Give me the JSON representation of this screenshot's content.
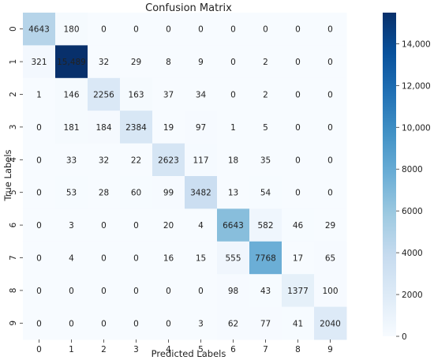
{
  "chart_data": {
    "type": "heatmap",
    "title": "Confusion Matrix",
    "xlabel": "Predicted Labels",
    "ylabel": "True Labels",
    "x_categories": [
      "0",
      "1",
      "2",
      "3",
      "4",
      "5",
      "6",
      "7",
      "8",
      "9"
    ],
    "y_categories": [
      "0",
      "1",
      "2",
      "3",
      "4",
      "5",
      "6",
      "7",
      "8",
      "9"
    ],
    "matrix": [
      [
        4643,
        180,
        0,
        0,
        0,
        0,
        0,
        0,
        0,
        0
      ],
      [
        321,
        15489,
        32,
        29,
        8,
        9,
        0,
        2,
        0,
        0
      ],
      [
        1,
        146,
        2256,
        163,
        37,
        34,
        0,
        2,
        0,
        0
      ],
      [
        0,
        181,
        184,
        2384,
        19,
        97,
        1,
        5,
        0,
        0
      ],
      [
        0,
        33,
        32,
        22,
        2623,
        117,
        18,
        35,
        0,
        0
      ],
      [
        0,
        53,
        28,
        60,
        99,
        3482,
        13,
        54,
        0,
        0
      ],
      [
        0,
        3,
        0,
        0,
        20,
        4,
        6643,
        582,
        46,
        29
      ],
      [
        0,
        4,
        0,
        0,
        16,
        15,
        555,
        7768,
        17,
        65
      ],
      [
        0,
        0,
        0,
        0,
        0,
        0,
        98,
        43,
        1377,
        100
      ],
      [
        0,
        0,
        0,
        0,
        0,
        3,
        62,
        77,
        41,
        2040
      ]
    ],
    "cell_labels": [
      [
        "4643",
        "180",
        "0",
        "0",
        "0",
        "0",
        "0",
        "0",
        "0",
        "0"
      ],
      [
        "321",
        "15,489",
        "32",
        "29",
        "8",
        "9",
        "0",
        "2",
        "0",
        "0"
      ],
      [
        "1",
        "146",
        "2256",
        "163",
        "37",
        "34",
        "0",
        "2",
        "0",
        "0"
      ],
      [
        "0",
        "181",
        "184",
        "2384",
        "19",
        "97",
        "1",
        "5",
        "0",
        "0"
      ],
      [
        "0",
        "33",
        "32",
        "22",
        "2623",
        "117",
        "18",
        "35",
        "0",
        "0"
      ],
      [
        "0",
        "53",
        "28",
        "60",
        "99",
        "3482",
        "13",
        "54",
        "0",
        "0"
      ],
      [
        "0",
        "3",
        "0",
        "0",
        "20",
        "4",
        "6643",
        "582",
        "46",
        "29"
      ],
      [
        "0",
        "4",
        "0",
        "0",
        "16",
        "15",
        "555",
        "7768",
        "17",
        "65"
      ],
      [
        "0",
        "0",
        "0",
        "0",
        "0",
        "0",
        "98",
        "43",
        "1377",
        "100"
      ],
      [
        "0",
        "0",
        "0",
        "0",
        "0",
        "3",
        "62",
        "77",
        "41",
        "2040"
      ]
    ],
    "colorbar": {
      "colormap": "Blues",
      "range": [
        0,
        15489
      ],
      "ticks": [
        0,
        2000,
        4000,
        6000,
        8000,
        10000,
        12000,
        14000
      ],
      "tick_labels": [
        "0",
        "2000",
        "4000",
        "6000",
        "8000",
        "10,000",
        "12,000",
        "14,000"
      ]
    },
    "colors": {
      "low": "#f7fbff",
      "mid": "#6baed6",
      "high": "#08306b",
      "dark_text_on_light": "#262626",
      "light_text_on_dark": "#ffffff"
    },
    "grid": false,
    "legend": "colorbar-right"
  }
}
